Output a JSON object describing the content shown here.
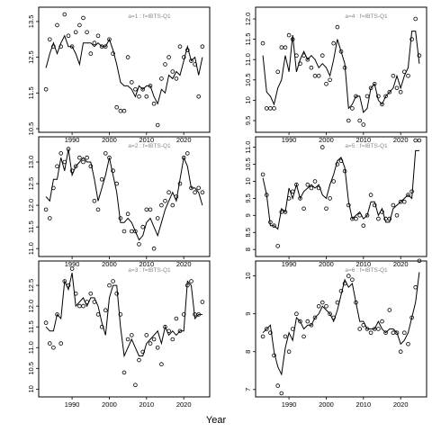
{
  "figure": {
    "xlabel": "Year"
  },
  "chart_data": [
    {
      "type": "line",
      "title": "a=1 : f=IBTS-Q1",
      "xlim": [
        1982,
        2026
      ],
      "ylim": [
        10.5,
        13.8
      ],
      "xticks": [
        1990,
        2000,
        2010,
        2020
      ],
      "yticks": [
        10.5,
        11.5,
        12.5,
        13.5
      ],
      "x": [
        1983,
        1984,
        1985,
        1986,
        1987,
        1988,
        1989,
        1990,
        1991,
        1992,
        1993,
        1994,
        1995,
        1996,
        1997,
        1998,
        1999,
        2000,
        2001,
        2002,
        2003,
        2004,
        2005,
        2006,
        2007,
        2008,
        2009,
        2010,
        2011,
        2012,
        2013,
        2014,
        2015,
        2016,
        2017,
        2018,
        2019,
        2020,
        2021,
        2022,
        2023,
        2024,
        2025
      ],
      "series": [
        {
          "kind": "fitted",
          "values": [
            12.2,
            12.6,
            12.9,
            12.6,
            12.9,
            13.1,
            12.8,
            12.8,
            12.6,
            12.3,
            12.9,
            12.9,
            12.9,
            12.8,
            12.9,
            12.8,
            12.8,
            13.0,
            12.7,
            12.3,
            11.8,
            11.7,
            11.7,
            11.6,
            11.4,
            11.7,
            11.6,
            11.7,
            11.7,
            11.4,
            11.2,
            11.6,
            11.5,
            12.0,
            11.9,
            12.1,
            12.0,
            12.4,
            12.8,
            12.4,
            12.5,
            12.0,
            12.5
          ]
        },
        {
          "kind": "observed",
          "values": [
            11.6,
            13.0,
            12.8,
            13.4,
            12.8,
            13.7,
            13.1,
            12.8,
            13.2,
            13.4,
            13.6,
            13.2,
            12.6,
            12.9,
            13.1,
            12.8,
            12.8,
            13.0,
            12.6,
            11.1,
            11.0,
            11.0,
            12.5,
            11.8,
            11.6,
            11.4,
            11.6,
            11.4,
            11.7,
            11.2,
            10.6,
            11.9,
            12.3,
            12.5,
            12.1,
            11.9,
            12.8,
            12.5,
            12.7,
            12.4,
            12.3,
            11.4,
            12.8
          ]
        }
      ]
    },
    {
      "type": "line",
      "title": "a=4 : f=IBTS-Q1",
      "xlim": [
        1982,
        2026
      ],
      "ylim": [
        9.3,
        12.2
      ],
      "xticks": [
        1990,
        2000,
        2010,
        2020
      ],
      "yticks": [
        9.5,
        10.0,
        10.5,
        11.0,
        11.5,
        12.0
      ],
      "x": [
        1983,
        1984,
        1985,
        1986,
        1987,
        1988,
        1989,
        1990,
        1991,
        1992,
        1993,
        1994,
        1995,
        1996,
        1997,
        1998,
        1999,
        2000,
        2001,
        2002,
        2003,
        2004,
        2005,
        2006,
        2007,
        2008,
        2009,
        2010,
        2011,
        2012,
        2013,
        2014,
        2015,
        2016,
        2017,
        2018,
        2019,
        2020,
        2021,
        2022,
        2023,
        2024,
        2025
      ],
      "series": [
        {
          "kind": "fitted",
          "values": [
            11.1,
            10.2,
            10.1,
            9.9,
            10.3,
            10.5,
            11.1,
            10.7,
            11.6,
            10.7,
            11.0,
            11.2,
            11.0,
            11.1,
            11.0,
            10.8,
            10.9,
            10.8,
            10.6,
            11.0,
            11.5,
            11.2,
            10.9,
            9.8,
            9.9,
            10.1,
            10.1,
            9.7,
            9.8,
            10.3,
            10.4,
            10.0,
            9.9,
            10.1,
            10.2,
            10.3,
            10.6,
            10.3,
            10.6,
            10.8,
            11.7,
            11.7,
            10.9
          ]
        },
        {
          "kind": "observed",
          "values": [
            11.4,
            9.8,
            9.8,
            9.8,
            10.7,
            11.3,
            11.3,
            11.6,
            11.5,
            11.1,
            10.9,
            11.1,
            11.0,
            10.8,
            10.6,
            10.6,
            11.1,
            10.4,
            10.5,
            11.4,
            11.8,
            11.2,
            10.8,
            9.5,
            9.8,
            10.1,
            9.5,
            9.4,
            10.1,
            10.3,
            10.4,
            10.1,
            9.9,
            10.1,
            10.2,
            10.6,
            10.3,
            10.2,
            10.7,
            10.6,
            11.5,
            12.0,
            11.1
          ]
        }
      ]
    },
    {
      "type": "line",
      "title": "a=2 : f=IBTS-Q1",
      "xlim": [
        1982,
        2026
      ],
      "ylim": [
        10.9,
        13.5
      ],
      "xticks": [
        1990,
        2000,
        2010,
        2020
      ],
      "yticks": [
        11.0,
        11.5,
        12.0,
        12.5,
        13.0
      ],
      "x": [
        1983,
        1984,
        1985,
        1986,
        1987,
        1988,
        1989,
        1990,
        1991,
        1992,
        1993,
        1994,
        1995,
        1996,
        1997,
        1998,
        1999,
        2000,
        2001,
        2002,
        2003,
        2004,
        2005,
        2006,
        2007,
        2008,
        2009,
        2010,
        2011,
        2012,
        2013,
        2014,
        2015,
        2016,
        2017,
        2018,
        2019,
        2020,
        2021,
        2022,
        2023,
        2024,
        2025
      ],
      "series": [
        {
          "kind": "fitted",
          "values": [
            12.2,
            12.1,
            12.6,
            12.6,
            13.1,
            12.8,
            13.3,
            12.7,
            12.9,
            13.0,
            13.1,
            13.0,
            13.0,
            12.6,
            12.1,
            12.4,
            12.7,
            13.1,
            12.7,
            12.3,
            11.6,
            11.6,
            11.7,
            11.6,
            11.4,
            11.2,
            11.3,
            11.6,
            11.7,
            11.5,
            11.3,
            11.6,
            11.9,
            12.1,
            12.3,
            12.1,
            12.6,
            13.1,
            12.9,
            12.4,
            12.4,
            12.3,
            12.0
          ]
        },
        {
          "kind": "observed",
          "values": [
            11.9,
            11.7,
            12.4,
            12.9,
            13.2,
            13.0,
            13.3,
            12.8,
            12.9,
            13.1,
            13.0,
            13.1,
            12.9,
            12.1,
            11.9,
            12.6,
            13.2,
            13.1,
            12.8,
            12.5,
            11.7,
            11.4,
            11.8,
            11.4,
            11.4,
            11.1,
            11.5,
            11.9,
            11.9,
            11.0,
            11.7,
            12.0,
            12.1,
            12.3,
            12.0,
            12.2,
            12.5,
            13.1,
            13.2,
            12.4,
            12.3,
            12.4,
            12.3
          ]
        }
      ]
    },
    {
      "type": "line",
      "title": "a=5 : f=IBTS-Q1",
      "xlim": [
        1982,
        2026
      ],
      "ylim": [
        7.9,
        11.2
      ],
      "xticks": [
        1990,
        2000,
        2010,
        2020
      ],
      "yticks": [
        8.0,
        8.5,
        9.0,
        9.5,
        10.0,
        10.5,
        11.0
      ],
      "x": [
        1983,
        1984,
        1985,
        1986,
        1987,
        1988,
        1989,
        1990,
        1991,
        1992,
        1993,
        1994,
        1995,
        1996,
        1997,
        1998,
        1999,
        2000,
        2001,
        2002,
        2003,
        2004,
        2005,
        2006,
        2007,
        2008,
        2009,
        2010,
        2011,
        2012,
        2013,
        2014,
        2015,
        2016,
        2017,
        2018,
        2019,
        2020,
        2021,
        2022,
        2023,
        2024,
        2025
      ],
      "series": [
        {
          "kind": "fitted",
          "values": [
            10.1,
            9.6,
            8.7,
            8.7,
            8.6,
            9.2,
            9.1,
            9.8,
            9.5,
            9.9,
            9.5,
            9.7,
            9.8,
            9.9,
            9.8,
            9.9,
            9.6,
            9.5,
            9.9,
            10.2,
            10.6,
            10.7,
            10.4,
            9.4,
            8.9,
            9.0,
            9.1,
            8.9,
            9.0,
            9.4,
            9.4,
            9.0,
            9.2,
            8.8,
            8.8,
            9.2,
            9.3,
            9.4,
            9.5,
            9.6,
            9.5,
            10.9,
            10.9
          ]
        },
        {
          "kind": "observed",
          "values": [
            10.2,
            9.6,
            8.8,
            8.7,
            8.1,
            9.1,
            9.1,
            9.5,
            9.7,
            9.9,
            9.5,
            9.2,
            9.9,
            9.8,
            10.0,
            9.8,
            11.0,
            9.2,
            9.5,
            10.0,
            10.5,
            10.6,
            10.3,
            9.3,
            8.9,
            8.9,
            9.0,
            8.7,
            9.0,
            9.6,
            9.3,
            8.9,
            9.1,
            8.9,
            8.9,
            9.3,
            9.0,
            9.4,
            9.4,
            9.6,
            9.7,
            11.2,
            11.2
          ]
        }
      ]
    },
    {
      "type": "line",
      "title": "a=3 : f=IBTS-Q1",
      "xlim": [
        1982,
        2026
      ],
      "ylim": [
        9.9,
        13.0
      ],
      "xticks": [
        1990,
        2000,
        2010,
        2020
      ],
      "yticks": [
        10.0,
        10.5,
        11.0,
        11.5,
        12.0,
        12.5
      ],
      "x": [
        1983,
        1984,
        1985,
        1986,
        1987,
        1988,
        1989,
        1990,
        1991,
        1992,
        1993,
        1994,
        1995,
        1996,
        1997,
        1998,
        1999,
        2000,
        2001,
        2002,
        2003,
        2004,
        2005,
        2006,
        2007,
        2008,
        2009,
        2010,
        2011,
        2012,
        2013,
        2014,
        2015,
        2016,
        2017,
        2018,
        2019,
        2020,
        2021,
        2022,
        2023,
        2024,
        2025
      ],
      "series": [
        {
          "kind": "fitted",
          "values": [
            11.5,
            11.4,
            11.4,
            11.8,
            11.7,
            12.6,
            12.4,
            12.8,
            12.0,
            12.1,
            12.2,
            12.0,
            12.2,
            12.2,
            12.0,
            11.6,
            11.3,
            12.2,
            12.5,
            12.5,
            11.5,
            10.8,
            11.0,
            11.2,
            11.0,
            10.8,
            10.8,
            11.1,
            11.2,
            11.3,
            11.4,
            11.1,
            11.5,
            11.3,
            11.4,
            11.3,
            11.4,
            11.4,
            12.6,
            12.5,
            11.7,
            11.8,
            11.8
          ]
        },
        {
          "kind": "observed",
          "values": [
            11.6,
            11.1,
            11.0,
            11.8,
            11.1,
            12.6,
            12.5,
            12.9,
            12.3,
            12.0,
            12.0,
            12.1,
            12.3,
            12.1,
            11.8,
            11.5,
            11.9,
            12.5,
            12.6,
            12.3,
            11.8,
            10.4,
            11.2,
            11.3,
            10.1,
            10.7,
            10.9,
            11.3,
            11.1,
            11.2,
            11.0,
            10.6,
            11.5,
            11.4,
            11.2,
            11.7,
            11.4,
            11.8,
            12.5,
            12.6,
            11.8,
            11.8,
            12.1
          ]
        }
      ]
    },
    {
      "type": "line",
      "title": "a=6 : f=IBTS-Q1",
      "xlim": [
        1982,
        2026
      ],
      "ylim": [
        6.9,
        10.3
      ],
      "xticks": [
        1990,
        2000,
        2010,
        2020
      ],
      "yticks": [
        7,
        8,
        9,
        10
      ],
      "x": [
        1983,
        1984,
        1985,
        1986,
        1987,
        1988,
        1989,
        1990,
        1991,
        1992,
        1993,
        1994,
        1995,
        1996,
        1997,
        1998,
        1999,
        2000,
        2001,
        2002,
        2003,
        2004,
        2005,
        2006,
        2007,
        2008,
        2009,
        2010,
        2011,
        2012,
        2013,
        2014,
        2015,
        2016,
        2017,
        2018,
        2019,
        2020,
        2021,
        2022,
        2023,
        2024,
        2025
      ],
      "series": [
        {
          "kind": "fitted",
          "values": [
            8.5,
            8.6,
            8.7,
            8.0,
            7.6,
            7.4,
            8.1,
            8.5,
            8.3,
            8.9,
            8.8,
            8.6,
            8.7,
            8.7,
            8.9,
            9.0,
            9.2,
            9.1,
            9.0,
            8.8,
            9.1,
            9.5,
            9.9,
            9.7,
            9.8,
            9.3,
            8.8,
            8.8,
            8.6,
            8.6,
            8.6,
            8.8,
            8.6,
            8.5,
            8.6,
            8.6,
            8.5,
            8.2,
            8.3,
            8.5,
            8.9,
            9.3,
            10.1
          ]
        },
        {
          "kind": "observed",
          "values": [
            8.4,
            8.6,
            8.5,
            7.9,
            7.1,
            6.9,
            8.4,
            8.0,
            8.6,
            9.0,
            8.8,
            8.4,
            8.8,
            8.7,
            8.9,
            9.2,
            9.3,
            9.2,
            9.0,
            8.9,
            9.3,
            9.6,
            9.8,
            10.0,
            9.9,
            9.3,
            8.6,
            8.7,
            8.6,
            8.5,
            8.6,
            8.6,
            8.8,
            8.5,
            9.1,
            8.5,
            8.5,
            8.0,
            8.5,
            8.2,
            8.9,
            9.7,
            10.4
          ]
        }
      ]
    }
  ]
}
